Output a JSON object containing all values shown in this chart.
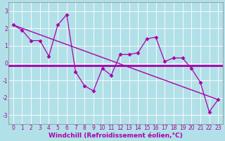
{
  "xlabel": "Windchill (Refroidissement éolien,°C)",
  "x_data": [
    0,
    1,
    2,
    3,
    4,
    5,
    6,
    7,
    8,
    9,
    10,
    11,
    12,
    13,
    14,
    15,
    16,
    17,
    18,
    19,
    20,
    21,
    22,
    23
  ],
  "y_data": [
    2.2,
    1.9,
    1.3,
    1.3,
    0.4,
    2.2,
    2.8,
    -0.5,
    -1.3,
    -1.6,
    -0.3,
    -0.7,
    0.5,
    0.5,
    0.6,
    1.4,
    1.5,
    0.1,
    0.3,
    0.3,
    -0.3,
    -1.1,
    -2.8,
    -2.1
  ],
  "trend_x": [
    0,
    23
  ],
  "trend_y": [
    2.2,
    -2.1
  ],
  "flat_y": -0.12,
  "background_color": "#b2e0e8",
  "grid_color": "#c8dde0",
  "line_color": "#aa00aa",
  "ylim": [
    -3.5,
    3.5
  ],
  "xlim": [
    -0.5,
    23.5
  ],
  "yticks": [
    -3,
    -2,
    -1,
    0,
    1,
    2,
    3
  ],
  "xticks": [
    0,
    1,
    2,
    3,
    4,
    5,
    6,
    7,
    8,
    9,
    10,
    11,
    12,
    13,
    14,
    15,
    16,
    17,
    18,
    19,
    20,
    21,
    22,
    23
  ],
  "tick_fontsize": 5.5,
  "label_fontsize": 6.5
}
